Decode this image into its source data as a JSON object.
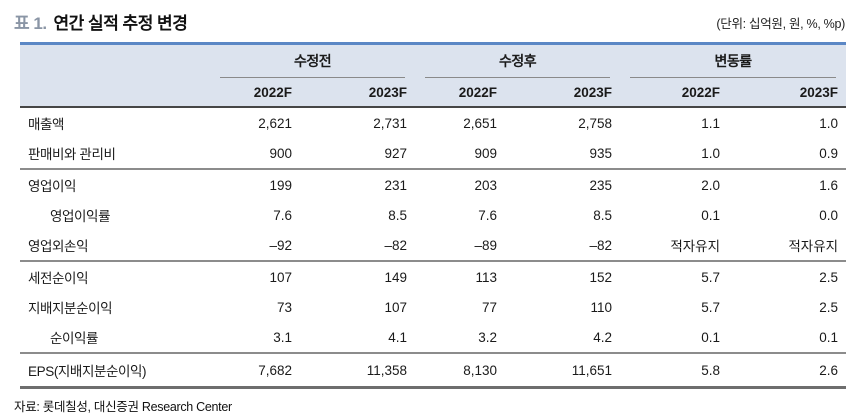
{
  "title": {
    "prefix": "표 1.",
    "text": "연간 실적 추정 변경"
  },
  "unit_note": "(단위: 십억원, 원, %, %p)",
  "colors": {
    "accent_top_border": "#5b87c5",
    "header_bg": "#dce3ee",
    "title_prefix": "#8a95a5",
    "divider_gray": "#8c8c8c",
    "header_rule_dark": "#464646"
  },
  "table": {
    "groups": [
      {
        "label": "수정전"
      },
      {
        "label": "수정후"
      },
      {
        "label": "변동률"
      }
    ],
    "year_headers": [
      "2022F",
      "2023F",
      "2022F",
      "2023F",
      "2022F",
      "2023F"
    ],
    "rows": [
      {
        "label": "매출액",
        "indent": false,
        "divider_above": false,
        "values": [
          "2,621",
          "2,731",
          "2,651",
          "2,758",
          "1.1",
          "1.0"
        ]
      },
      {
        "label": "판매비와 관리비",
        "indent": false,
        "divider_above": false,
        "values": [
          "900",
          "927",
          "909",
          "935",
          "1.0",
          "0.9"
        ]
      },
      {
        "label": "영업이익",
        "indent": false,
        "divider_above": true,
        "values": [
          "199",
          "231",
          "203",
          "235",
          "2.0",
          "1.6"
        ]
      },
      {
        "label": "영업이익률",
        "indent": true,
        "divider_above": false,
        "values": [
          "7.6",
          "8.5",
          "7.6",
          "8.5",
          "0.1",
          "0.0"
        ]
      },
      {
        "label": "영업외손익",
        "indent": false,
        "divider_above": false,
        "values": [
          "–92",
          "–82",
          "–89",
          "–82",
          "적자유지",
          "적자유지"
        ]
      },
      {
        "label": "세전순이익",
        "indent": false,
        "divider_above": true,
        "values": [
          "107",
          "149",
          "113",
          "152",
          "5.7",
          "2.5"
        ]
      },
      {
        "label": "지배지분순이익",
        "indent": false,
        "divider_above": false,
        "values": [
          "73",
          "107",
          "77",
          "110",
          "5.7",
          "2.5"
        ]
      },
      {
        "label": "순이익률",
        "indent": true,
        "divider_above": false,
        "values": [
          "3.1",
          "4.1",
          "3.2",
          "4.2",
          "0.1",
          "0.1"
        ]
      },
      {
        "label": "EPS(지배지분순이익)",
        "indent": false,
        "divider_above": true,
        "values": [
          "7,682",
          "11,358",
          "8,130",
          "11,651",
          "5.8",
          "2.6"
        ]
      }
    ]
  },
  "footer": "자료: 롯데칠성, 대신증권 Research Center"
}
